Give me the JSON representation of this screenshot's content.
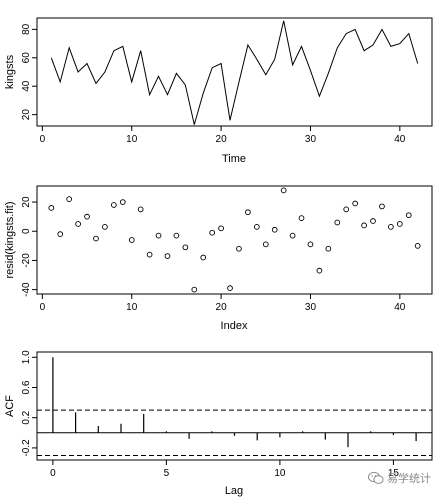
{
  "chart_data": [
    {
      "type": "line",
      "xlabel": "Time",
      "ylabel": "kingsts",
      "xlim": [
        -0.6,
        43.6
      ],
      "ylim": [
        12,
        88
      ],
      "xticks": [
        "0",
        "10",
        "20",
        "30",
        "40"
      ],
      "yticks": [
        "20",
        "40",
        "60",
        "80"
      ],
      "x": [
        1,
        2,
        3,
        4,
        5,
        6,
        7,
        8,
        9,
        10,
        11,
        12,
        13,
        14,
        15,
        16,
        17,
        18,
        19,
        20,
        21,
        22,
        23,
        24,
        25,
        26,
        27,
        28,
        29,
        30,
        31,
        32,
        33,
        34,
        35,
        36,
        37,
        38,
        39,
        40,
        41,
        42
      ],
      "series": [
        {
          "values": [
            60,
            43,
            67,
            50,
            56,
            42,
            50,
            65,
            68,
            43,
            65,
            34,
            47,
            34,
            49,
            41,
            13,
            35,
            53,
            56,
            16,
            43,
            69,
            59,
            48,
            59,
            86,
            55,
            68,
            51,
            33,
            49,
            67,
            77,
            80,
            65,
            69,
            80,
            68,
            70,
            77,
            56
          ]
        }
      ]
    },
    {
      "type": "scatter",
      "xlabel": "Index",
      "ylabel": "resid(kingsts.fit)",
      "xlim": [
        -0.6,
        43.6
      ],
      "ylim": [
        -43,
        31
      ],
      "xticks": [
        "0",
        "10",
        "20",
        "30",
        "40"
      ],
      "yticks": [
        "-40",
        "-20",
        "0",
        "20"
      ],
      "x": [
        1,
        2,
        3,
        4,
        5,
        6,
        7,
        8,
        9,
        10,
        11,
        12,
        13,
        14,
        15,
        16,
        17,
        18,
        19,
        20,
        21,
        22,
        23,
        24,
        25,
        26,
        27,
        28,
        29,
        30,
        31,
        32,
        33,
        34,
        35,
        36,
        37,
        38,
        39,
        40,
        41,
        42
      ],
      "series": [
        {
          "values": [
            16,
            -2,
            22,
            5,
            10,
            -5,
            3,
            18,
            20,
            -6,
            15,
            -16,
            -3,
            -17,
            -3,
            -11,
            -40,
            -18,
            -1,
            2,
            -39,
            -12,
            13,
            3,
            -9,
            1,
            28,
            -3,
            9,
            -9,
            -27,
            -12,
            6,
            15,
            19,
            4,
            7,
            17,
            3,
            5,
            11,
            -10
          ]
        }
      ]
    },
    {
      "type": "bar",
      "xlabel": "Lag",
      "ylabel": "ACF",
      "xlim": [
        -0.7,
        16.7
      ],
      "ylim": [
        -0.36,
        1.07
      ],
      "xticks": [
        "0",
        "5",
        "10",
        "15"
      ],
      "yticks": [
        "-0.2",
        "0.2",
        "0.6",
        "1.0"
      ],
      "categories": [
        0,
        1,
        2,
        3,
        4,
        5,
        6,
        7,
        8,
        9,
        10,
        11,
        12,
        13,
        14,
        15,
        16
      ],
      "values": [
        1.0,
        0.27,
        0.09,
        0.12,
        0.25,
        0.02,
        -0.08,
        0.02,
        -0.04,
        -0.1,
        -0.06,
        0.02,
        -0.09,
        -0.19,
        0.02,
        -0.03,
        -0.11
      ],
      "ci": 0.3
    }
  ],
  "watermark": {
    "text": "易学统计"
  }
}
